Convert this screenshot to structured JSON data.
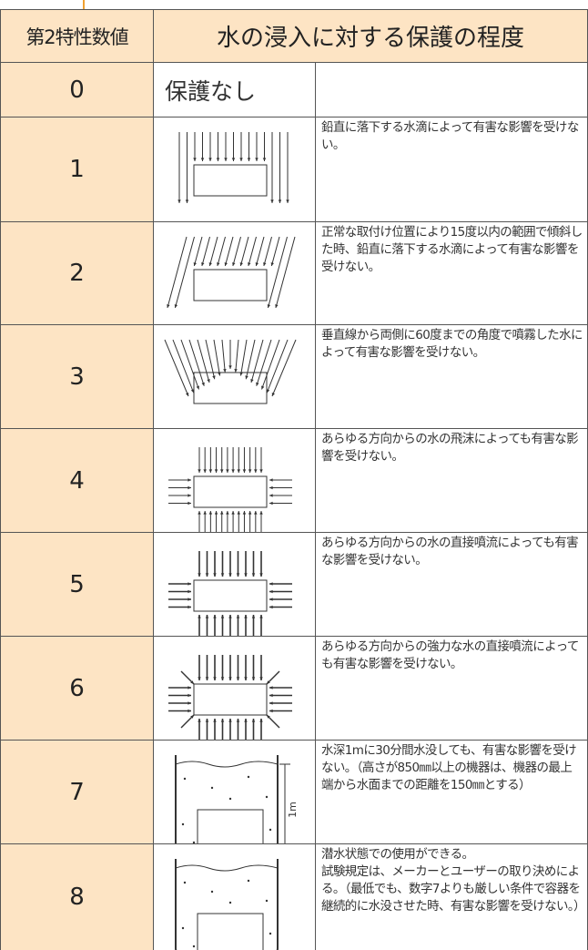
{
  "header": {
    "code": "第2特性数値",
    "title": "水の浸入に対する保護の程度"
  },
  "rows": [
    {
      "code": "0",
      "label": "保護なし"
    },
    {
      "code": "1",
      "text": "鉛直に落下する水滴によって有害な影響を受けない。"
    },
    {
      "code": "2",
      "text": "正常な取付け位置により15度以内の範囲で傾斜した時、鉛直に落下する水滴によって有害な影響を受けない。"
    },
    {
      "code": "3",
      "text": "垂直線から両側に60度までの角度で噴霧した水によって有害な影響を受けない。"
    },
    {
      "code": "4",
      "text": "あらゆる方向からの水の飛沫によっても有害な影響を受けない。"
    },
    {
      "code": "5",
      "text": "あらゆる方向からの水の直接噴流によっても有害な影響を受けない。"
    },
    {
      "code": "6",
      "text": "あらゆる方向からの強力な水の直接噴流によっても有害な影響を受けない。"
    },
    {
      "code": "7",
      "text": "水深1mに30分間水没しても、有害な影響を受けない。（高さが850㎜以上の機器は、機器の最上端から水面までの距離を150㎜とする）",
      "diagram_label": "1m"
    },
    {
      "code": "8",
      "text": "潜水状態での使用ができる。\n試験規定は、メーカーとユーザーの取り決めによる。（最低でも、数字7よりも厳しい条件で容器を継続的に水没させた時、有害な影響を受けない。）"
    }
  ]
}
